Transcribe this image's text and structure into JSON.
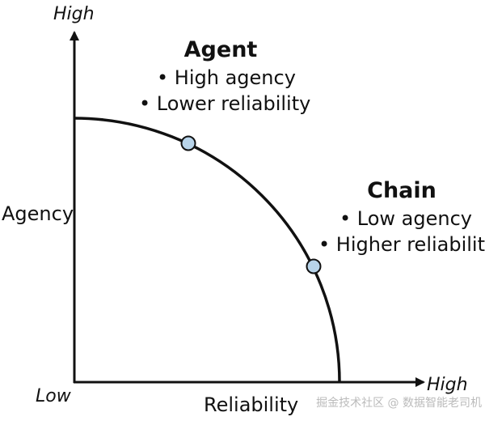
{
  "axes": {
    "y_high": "High",
    "y_label": "Agency",
    "origin_low": "Low",
    "x_high": "High",
    "x_label": "Reliability"
  },
  "agent": {
    "title": "Agent",
    "points": [
      "• High agency",
      "• Lower reliability"
    ]
  },
  "chain": {
    "title": "Chain",
    "points": [
      "• Low agency",
      "• Higher reliability"
    ]
  },
  "watermark": "掘金技术社区 @ 数据智能老司机"
}
